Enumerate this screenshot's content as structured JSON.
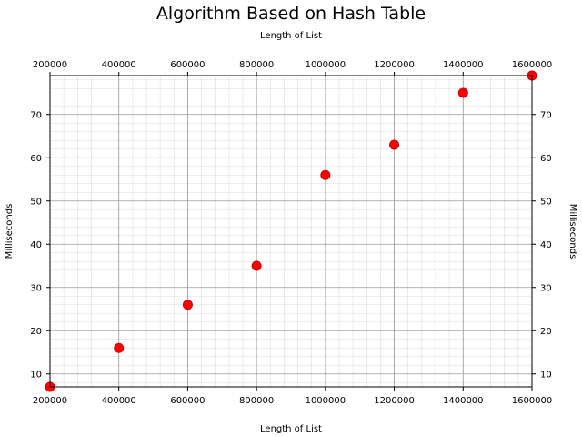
{
  "chart_data": {
    "type": "scatter",
    "title": "Algorithm Based on Hash Table",
    "xlabel": "Length of List",
    "ylabel": "Milliseconds",
    "x": [
      200000,
      400000,
      600000,
      800000,
      1000000,
      1200000,
      1400000,
      1600000
    ],
    "y": [
      7,
      16,
      26,
      35,
      56,
      63,
      75,
      79
    ],
    "xlim": [
      200000,
      1600000
    ],
    "ylim": [
      7,
      79
    ],
    "xticks": [
      200000,
      400000,
      600000,
      800000,
      1000000,
      1200000,
      1400000,
      1600000
    ],
    "yticks": [
      10,
      20,
      30,
      40,
      50,
      60,
      70
    ],
    "grid": true,
    "minor_grid": true,
    "mirrored_axes": true,
    "marker_color": "#ff0000",
    "marker_edge_color": "#cc0000"
  }
}
